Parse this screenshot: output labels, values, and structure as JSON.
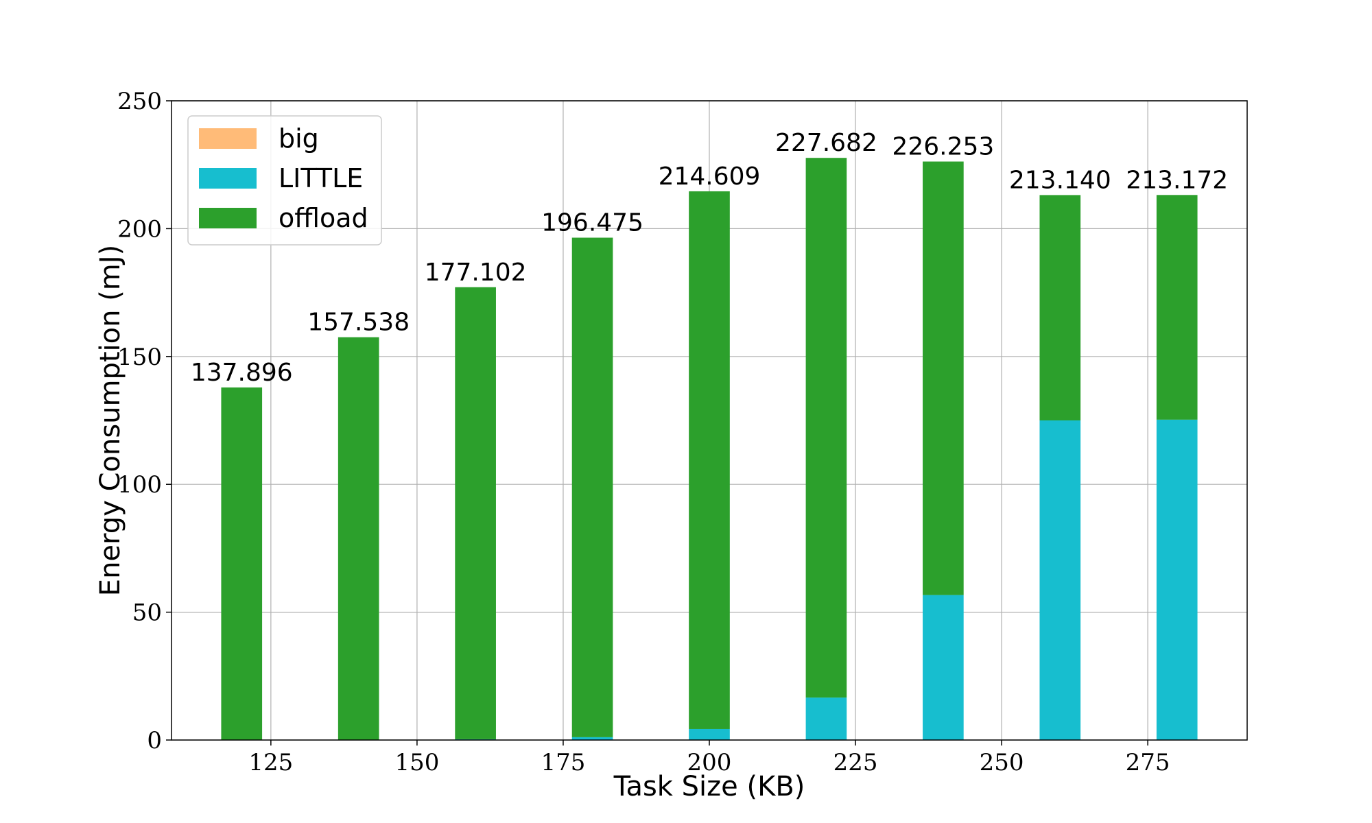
{
  "chart_data": {
    "type": "bar",
    "stacked": true,
    "title": "",
    "xlabel": "Task Size (KB)",
    "ylabel": "Energy Consumption (mJ)",
    "xlim": [
      108,
      292
    ],
    "ylim": [
      0,
      250
    ],
    "xticks": [
      125,
      150,
      175,
      200,
      225,
      250,
      275
    ],
    "yticks": [
      0,
      50,
      100,
      150,
      200,
      250
    ],
    "grid": true,
    "legend_position": "top-left",
    "x": [
      120,
      140,
      160,
      180,
      200,
      220,
      240,
      260,
      280
    ],
    "series": [
      {
        "name": "big",
        "color": "#ffbb78",
        "values": [
          0,
          0,
          0,
          0,
          0,
          0,
          0,
          0,
          0
        ]
      },
      {
        "name": "LITTLE",
        "color": "#17becf",
        "values": [
          0,
          0,
          0.3,
          1.1,
          4.3,
          16.6,
          56.7,
          125.0,
          125.3
        ]
      },
      {
        "name": "offload",
        "color": "#2ca02c",
        "values": [
          137.896,
          157.538,
          176.802,
          195.375,
          210.309,
          211.082,
          169.553,
          88.14,
          87.872
        ]
      }
    ],
    "totals": [
      "137.896",
      "157.538",
      "177.102",
      "196.475",
      "214.609",
      "227.682",
      "226.253",
      "213.140",
      "213.172"
    ]
  }
}
